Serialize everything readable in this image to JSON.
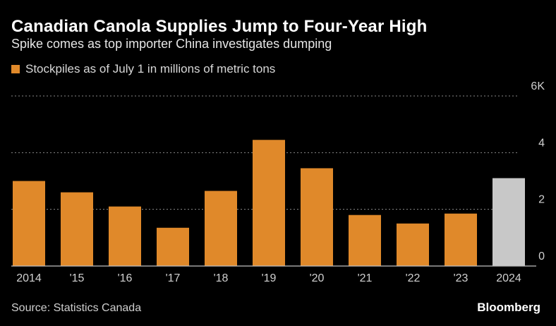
{
  "header": {
    "title": "Canadian Canola Supplies Jump to Four-Year High",
    "subtitle": "Spike comes as top importer China investigates dumping"
  },
  "footer": {
    "source": "Source: Statistics Canada",
    "brand": "Bloomberg"
  },
  "chart_data": {
    "type": "bar",
    "categories": [
      "2014",
      "'15",
      "'16",
      "'17",
      "'18",
      "'19",
      "'20",
      "'21",
      "'22",
      "'23",
      "2024"
    ],
    "series": [
      {
        "name": "Stockpiles as of July 1 in millions of metric tons",
        "values": [
          3.0,
          2.6,
          2.1,
          1.35,
          2.65,
          4.45,
          3.45,
          1.8,
          1.5,
          1.85,
          3.1
        ],
        "color": "#e0892a"
      }
    ],
    "highlight_color": "#c8c8c8",
    "highlight_index": 10,
    "ylim": [
      0,
      6
    ],
    "y_ticks": [
      {
        "value": 0,
        "label": "0"
      },
      {
        "value": 2,
        "label": "2"
      },
      {
        "value": 4,
        "label": "4"
      },
      {
        "value": 6,
        "label": "6K"
      }
    ],
    "grid": true,
    "legend_position": "top-left",
    "xlabel": "",
    "ylabel": ""
  }
}
